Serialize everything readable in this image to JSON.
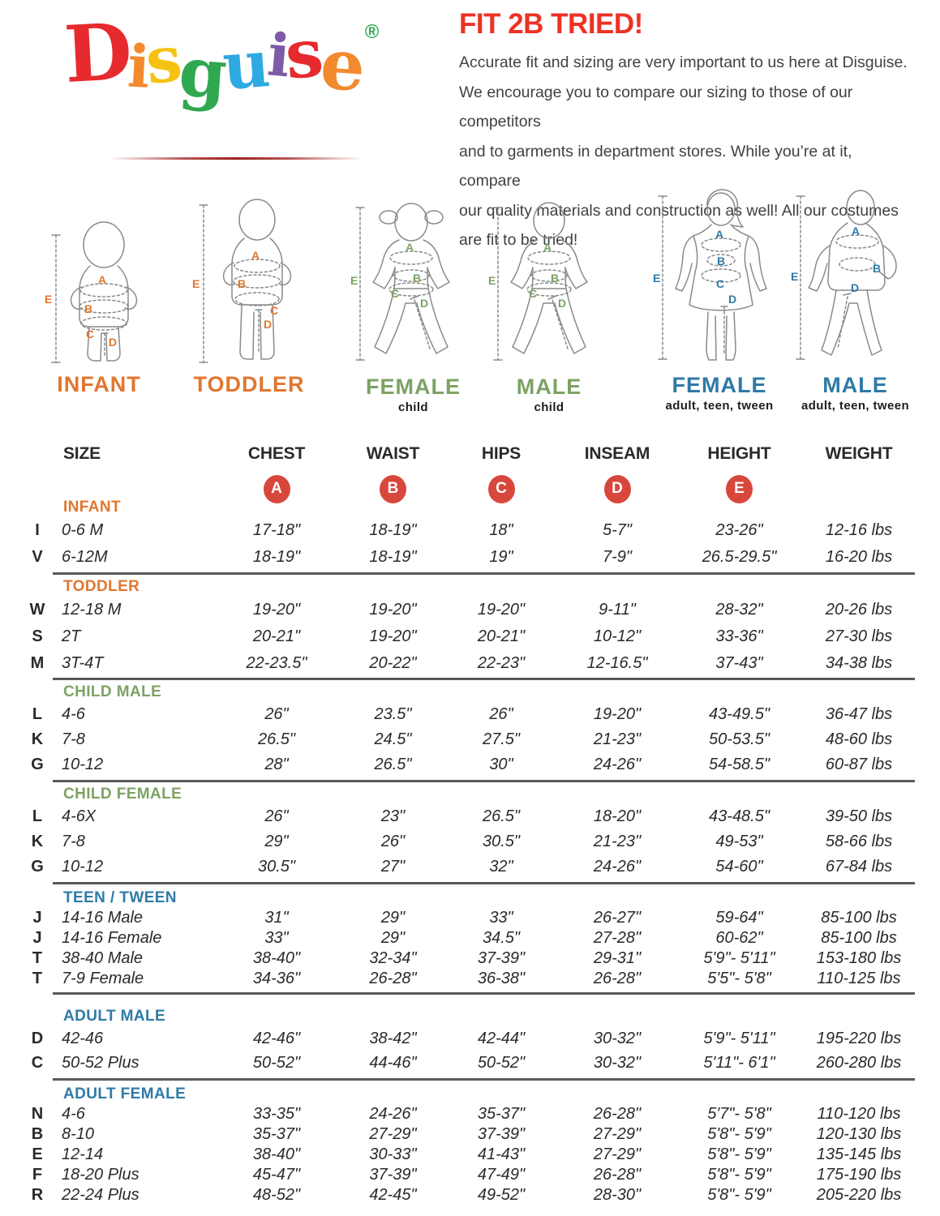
{
  "palette": {
    "orange": "#E2762F",
    "green": "#7DA264",
    "blue": "#2E7AA6",
    "badge_red": "#D8473C",
    "title_red": "#EE3224",
    "underline_red": "#9E1F1F",
    "text_dark": "#2B2A29",
    "body_text": "#414042",
    "separator": "#58595B",
    "figure_line": "#8A8A8A"
  },
  "logo": {
    "letters": [
      {
        "ch": "D",
        "color": "#E62A2E"
      },
      {
        "ch": "i",
        "color": "#F28A2E"
      },
      {
        "ch": "s",
        "color": "#F6C211"
      },
      {
        "ch": "g",
        "color": "#2FA84F"
      },
      {
        "ch": "u",
        "color": "#2FA9E1"
      },
      {
        "ch": "i",
        "color": "#7E5AA7"
      },
      {
        "ch": "s",
        "color": "#E62A2E"
      },
      {
        "ch": "e",
        "color": "#F28A2E"
      }
    ],
    "registered": "®",
    "registered_color": "#2FA84F"
  },
  "intro": {
    "title": "FIT 2B TRIED!",
    "lines": [
      "Accurate fit and sizing are very important to us here at Disguise.",
      "We encourage you to compare our sizing to those of our competitors",
      "and to garments in department stores. While you’re at it, compare",
      "our quality materials and construction as well! All our costumes",
      "are fit to be tried!"
    ]
  },
  "figures": [
    {
      "id": "infant",
      "label": "INFANT",
      "sublabel": "",
      "label_color": "orange"
    },
    {
      "id": "toddler",
      "label": "TODDLER",
      "sublabel": "",
      "label_color": "orange"
    },
    {
      "id": "female-child",
      "label": "FEMALE",
      "sublabel": "child",
      "label_color": "green"
    },
    {
      "id": "male-child",
      "label": "MALE",
      "sublabel": "child",
      "label_color": "green"
    },
    {
      "id": "female-adult",
      "label": "FEMALE",
      "sublabel": "adult, teen, tween",
      "label_color": "blue"
    },
    {
      "id": "male-adult",
      "label": "MALE",
      "sublabel": "adult, teen, tween",
      "label_color": "blue"
    }
  ],
  "table": {
    "columns": [
      "SIZE",
      "CHEST",
      "WAIST",
      "HIPS",
      "INSEAM",
      "HEIGHT",
      "WEIGHT"
    ],
    "measure_badges": [
      "A",
      "B",
      "C",
      "D",
      "E"
    ],
    "sections": [
      {
        "name": "INFANT",
        "color": "orange",
        "rows": [
          {
            "code": "I",
            "size": "0-6 M",
            "cells": [
              "17-18\"",
              "18-19\"",
              "18\"",
              "5-7\"",
              "23-26\"",
              "12-16 lbs"
            ]
          },
          {
            "code": "V",
            "size": "6-12M",
            "cells": [
              "18-19\"",
              "18-19\"",
              "19\"",
              "7-9\"",
              "26.5-29.5\"",
              "16-20 lbs"
            ]
          }
        ]
      },
      {
        "name": "TODDLER",
        "color": "orange",
        "rows": [
          {
            "code": "W",
            "size": "12-18 M",
            "cells": [
              "19-20\"",
              "19-20\"",
              "19-20\"",
              "9-11\"",
              "28-32\"",
              "20-26 lbs"
            ]
          },
          {
            "code": "S",
            "size": "2T",
            "cells": [
              "20-21\"",
              "19-20\"",
              "20-21\"",
              "10-12\"",
              "33-36\"",
              "27-30 lbs"
            ]
          },
          {
            "code": "M",
            "size": "3T-4T",
            "cells": [
              "22-23.5\"",
              "20-22\"",
              "22-23\"",
              "12-16.5\"",
              "37-43\"",
              "34-38 lbs"
            ]
          }
        ]
      },
      {
        "name": "CHILD MALE",
        "color": "green",
        "rows": [
          {
            "code": "L",
            "size": "4-6",
            "cells": [
              "26\"",
              "23.5\"",
              "26\"",
              "19-20\"",
              "43-49.5\"",
              "36-47 lbs"
            ]
          },
          {
            "code": "K",
            "size": "7-8",
            "cells": [
              "26.5\"",
              "24.5\"",
              "27.5\"",
              "21-23\"",
              "50-53.5\"",
              "48-60 lbs"
            ]
          },
          {
            "code": "G",
            "size": "10-12",
            "cells": [
              "28\"",
              "26.5\"",
              "30\"",
              "24-26\"",
              "54-58.5\"",
              "60-87 lbs"
            ]
          }
        ]
      },
      {
        "name": "CHILD FEMALE",
        "color": "green",
        "rows": [
          {
            "code": "L",
            "size": "4-6X",
            "cells": [
              "26\"",
              "23\"",
              "26.5\"",
              "18-20\"",
              "43-48.5\"",
              "39-50 lbs"
            ]
          },
          {
            "code": "K",
            "size": "7-8",
            "cells": [
              "29\"",
              "26\"",
              "30.5\"",
              "21-23\"",
              "49-53\"",
              "58-66 lbs"
            ]
          },
          {
            "code": "G",
            "size": "10-12",
            "cells": [
              "30.5\"",
              "27\"",
              "32\"",
              "24-26\"",
              "54-60\"",
              "67-84 lbs"
            ]
          }
        ]
      },
      {
        "name": "TEEN / TWEEN",
        "color": "blue",
        "rows": [
          {
            "code": "J",
            "size": "14-16 Male",
            "cells": [
              "31\"",
              "29\"",
              "33\"",
              "26-27\"",
              "59-64\"",
              "85-100 lbs"
            ]
          },
          {
            "code": "J",
            "size": "14-16 Female",
            "cells": [
              "33\"",
              "29\"",
              "34.5\"",
              "27-28\"",
              "60-62\"",
              "85-100 lbs"
            ]
          },
          {
            "code": "T",
            "size": "38-40 Male",
            "cells": [
              "38-40\"",
              "32-34\"",
              "37-39\"",
              "29-31\"",
              "5'9\"- 5'11\"",
              "153-180 lbs"
            ]
          },
          {
            "code": "T",
            "size": "7-9 Female",
            "cells": [
              "34-36\"",
              "26-28\"",
              "36-38\"",
              "26-28\"",
              "5'5\"- 5'8\"",
              "110-125 lbs"
            ]
          }
        ]
      },
      {
        "name": "ADULT MALE",
        "color": "blue",
        "rows": [
          {
            "code": "D",
            "size": "42-46",
            "cells": [
              "42-46\"",
              "38-42\"",
              "42-44\"",
              "30-32\"",
              "5'9\"- 5'11\"",
              "195-220 lbs"
            ]
          },
          {
            "code": "C",
            "size": "50-52 Plus",
            "cells": [
              "50-52\"",
              "44-46\"",
              "50-52\"",
              "30-32\"",
              "5'11\"- 6'1\"",
              "260-280 lbs"
            ]
          }
        ]
      },
      {
        "name": "ADULT FEMALE",
        "color": "blue",
        "rows": [
          {
            "code": "N",
            "size": "4-6",
            "cells": [
              "33-35\"",
              "24-26\"",
              "35-37\"",
              "26-28\"",
              "5'7\"- 5'8\"",
              "110-120 lbs"
            ]
          },
          {
            "code": "B",
            "size": "8-10",
            "cells": [
              "35-37\"",
              "27-29\"",
              "37-39\"",
              "27-29\"",
              "5'8\"- 5'9\"",
              "120-130 lbs"
            ]
          },
          {
            "code": "E",
            "size": "12-14",
            "cells": [
              "38-40\"",
              "30-33\"",
              "41-43\"",
              "27-29\"",
              "5'8\"- 5'9\"",
              "135-145 lbs"
            ]
          },
          {
            "code": "F",
            "size": "18-20 Plus",
            "cells": [
              "45-47\"",
              "37-39\"",
              "47-49\"",
              "26-28\"",
              "5'8\"- 5'9\"",
              "175-190 lbs"
            ]
          },
          {
            "code": "R",
            "size": "22-24 Plus",
            "cells": [
              "48-52\"",
              "42-45\"",
              "49-52\"",
              "28-30\"",
              "5'8\"- 5'9\"",
              "205-220 lbs"
            ]
          }
        ]
      }
    ]
  }
}
